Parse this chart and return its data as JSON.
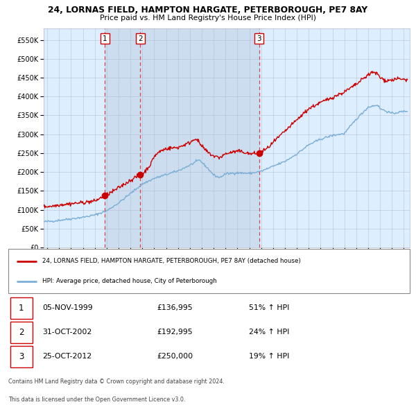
{
  "title": "24, LORNAS FIELD, HAMPTON HARGATE, PETERBOROUGH, PE7 8AY",
  "subtitle": "Price paid vs. HM Land Registry's House Price Index (HPI)",
  "legend_line1": "24, LORNAS FIELD, HAMPTON HARGATE, PETERBOROUGH, PE7 8AY (detached house)",
  "legend_line2": "HPI: Average price, detached house, City of Peterborough",
  "footer1": "Contains HM Land Registry data © Crown copyright and database right 2024.",
  "footer2": "This data is licensed under the Open Government Licence v3.0.",
  "transactions": [
    {
      "num": 1,
      "date": "05-NOV-1999",
      "price": 136995,
      "hpi_pct": "51% ↑ HPI",
      "x": 1999.85
    },
    {
      "num": 2,
      "date": "31-OCT-2002",
      "price": 192995,
      "hpi_pct": "24% ↑ HPI",
      "x": 2002.83
    },
    {
      "num": 3,
      "date": "25-OCT-2012",
      "price": 250000,
      "hpi_pct": "19% ↑ HPI",
      "x": 2012.82
    }
  ],
  "red_color": "#cc0000",
  "blue_color": "#7aaed6",
  "bg_color": "#ddeeff",
  "grid_color": "#b0b8cc",
  "dashed_color": "#dd4444",
  "ylim": [
    0,
    580000
  ],
  "xlim_start": 1994.7,
  "xlim_end": 2025.5
}
